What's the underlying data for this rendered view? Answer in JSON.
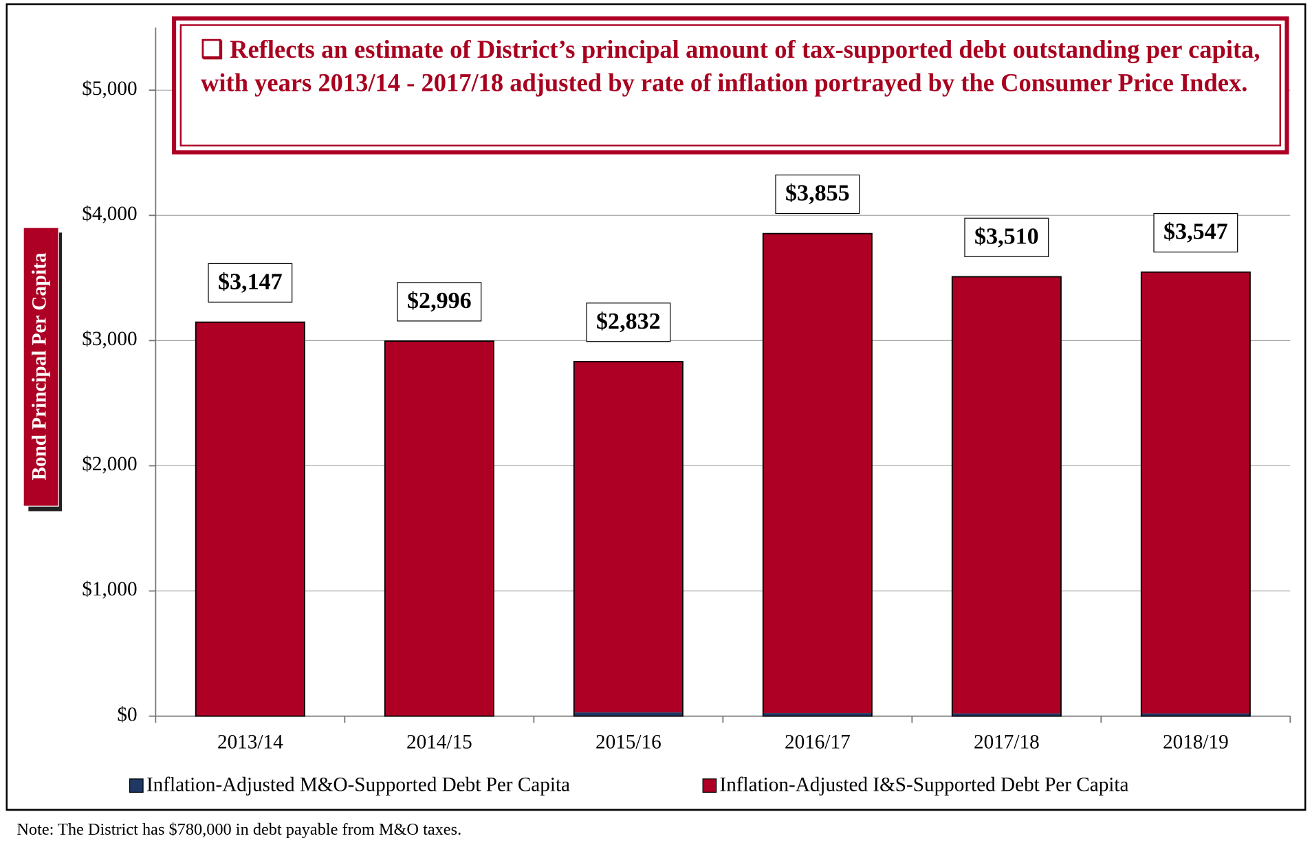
{
  "chart_data": {
    "type": "stacked_bar",
    "annotation": "❑ Reflects an estimate of District’s principal amount of tax-supported debt outstanding per capita, with years 2013/14 - 2017/18 adjusted by rate of inflation portrayed by the Consumer Price Index.",
    "y_label": "Bond Principal Per Capita",
    "categories": [
      "2013/14",
      "2014/15",
      "2015/16",
      "2016/17",
      "2017/18",
      "2018/19"
    ],
    "series": [
      {
        "name": "Inflation-Adjusted M&O-Supported Debt Per Capita",
        "color": "#1f3864",
        "values": [
          0,
          0,
          30,
          25,
          22,
          22
        ]
      },
      {
        "name": "Inflation-Adjusted I&S-Supported Debt Per Capita",
        "color": "#ad0024",
        "values": [
          3147,
          2996,
          2802,
          3830,
          3488,
          3525
        ]
      }
    ],
    "totals": [
      3147,
      2996,
      2832,
      3855,
      3510,
      3547
    ],
    "total_labels": [
      "$3,147",
      "$2,996",
      "$2,832",
      "$3,855",
      "$3,510",
      "$3,547"
    ],
    "ylim": [
      0,
      5500
    ],
    "yticks": [
      {
        "value": 0,
        "label": "$0"
      },
      {
        "value": 1000,
        "label": "$1,000"
      },
      {
        "value": 2000,
        "label": "$2,000"
      },
      {
        "value": 3000,
        "label": "$3,000"
      },
      {
        "value": 4000,
        "label": "$4,000"
      },
      {
        "value": 5000,
        "label": "$5,000"
      }
    ],
    "grid": true,
    "footnote": "Note: The District has $780,000 in debt payable from M&O taxes."
  }
}
